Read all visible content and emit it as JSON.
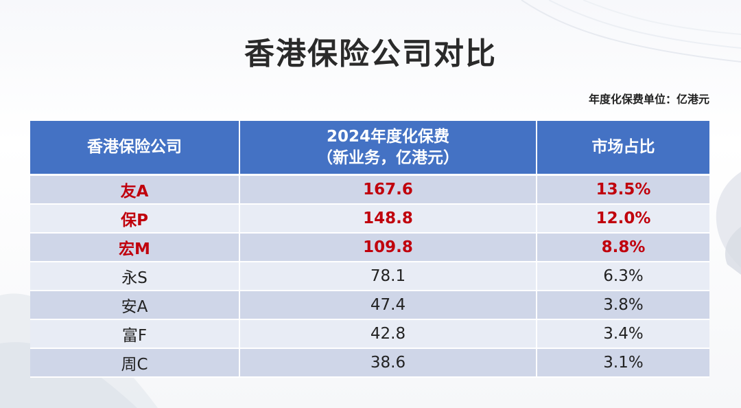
{
  "slide": {
    "title": "香港保险公司对比",
    "unit_note": "年度化保费单位：亿港元"
  },
  "table": {
    "headers": {
      "company": "香港保险公司",
      "premium_line1": "2024年度化保费",
      "premium_line2": "（新业务，亿港元）",
      "share": "市场占比"
    },
    "highlight_color": "#c0000c",
    "header_color": "#4472c4",
    "rows": [
      {
        "company": "友A",
        "premium": "167.6",
        "share": "13.5%",
        "highlighted": true
      },
      {
        "company": "保P",
        "premium": "148.8",
        "share": "12.0%",
        "highlighted": true
      },
      {
        "company": "宏M",
        "premium": "109.8",
        "share": "8.8%",
        "highlighted": true
      },
      {
        "company": "永S",
        "premium": "78.1",
        "share": "6.3%",
        "highlighted": false
      },
      {
        "company": "安A",
        "premium": "47.4",
        "share": "3.8%",
        "highlighted": false
      },
      {
        "company": "富F",
        "premium": "42.8",
        "share": "3.4%",
        "highlighted": false
      },
      {
        "company": "周C",
        "premium": "38.6",
        "share": "3.1%",
        "highlighted": false
      }
    ]
  }
}
